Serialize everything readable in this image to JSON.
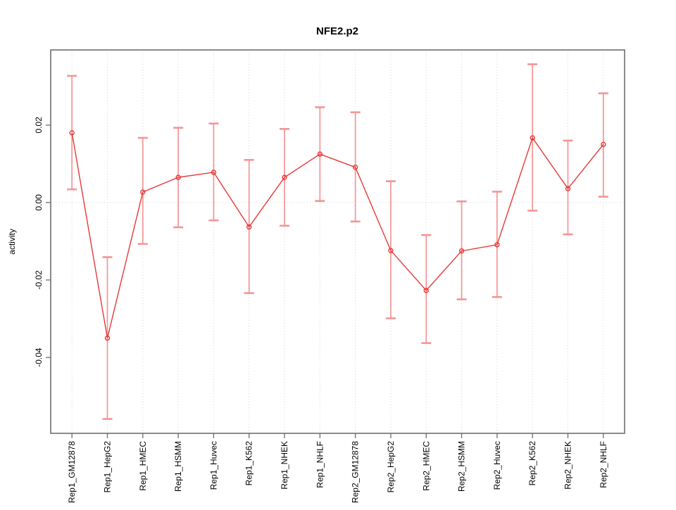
{
  "title": "NFE2.p2",
  "chart_data": {
    "type": "line",
    "title": "NFE2.p2",
    "xlabel": "",
    "ylabel": "activity",
    "legend": "none",
    "grid": "vertical dotted gridline at every category; dotted horizontal line at y=0 only",
    "categories": [
      "Rep1_GM12878",
      "Rep1_HepG2",
      "Rep1_HMEC",
      "Rep1_HSMM",
      "Rep1_Huvec",
      "Rep1_K562",
      "Rep1_NHEK",
      "Rep1_NHLF",
      "Rep2_GM12878",
      "Rep2_HepG2",
      "Rep2_HMEC",
      "Rep2_HSMM",
      "Rep2_Huvec",
      "Rep2_K562",
      "Rep2_NHEK",
      "Rep2_NHLF"
    ],
    "series": [
      {
        "name": "activity",
        "values": [
          0.018,
          -0.035,
          0.0027,
          0.0065,
          0.0078,
          -0.0063,
          0.0065,
          0.0125,
          0.0091,
          -0.0124,
          -0.0227,
          -0.0125,
          -0.0109,
          0.0167,
          0.0036,
          0.015
        ],
        "error_low": [
          0.0034,
          -0.0559,
          -0.0107,
          -0.0064,
          -0.0046,
          -0.0234,
          -0.006,
          0.0004,
          -0.0049,
          -0.0299,
          -0.0363,
          -0.025,
          -0.0244,
          -0.0021,
          -0.0082,
          0.0015
        ],
        "error_high": [
          0.0327,
          -0.0141,
          0.0167,
          0.0193,
          0.0204,
          0.011,
          0.019,
          0.0246,
          0.0233,
          0.0055,
          -0.0084,
          0.0003,
          0.0028,
          0.0357,
          0.016,
          0.0282
        ]
      }
    ],
    "ylim": [
      -0.0596,
      0.0394
    ],
    "yticks": [
      -0.04,
      -0.02,
      0.0,
      0.02
    ],
    "ytick_labels": [
      "-0.04",
      "-0.02",
      "0.00",
      "0.02"
    ],
    "marker": "open-circle",
    "colors": {
      "line": "#e63939",
      "marker": "#e63939",
      "error_bar": "#f59494",
      "grid": "#d4d4d4",
      "box": "#6e6e6e",
      "text": "#000000",
      "background": "#ffffff"
    }
  }
}
